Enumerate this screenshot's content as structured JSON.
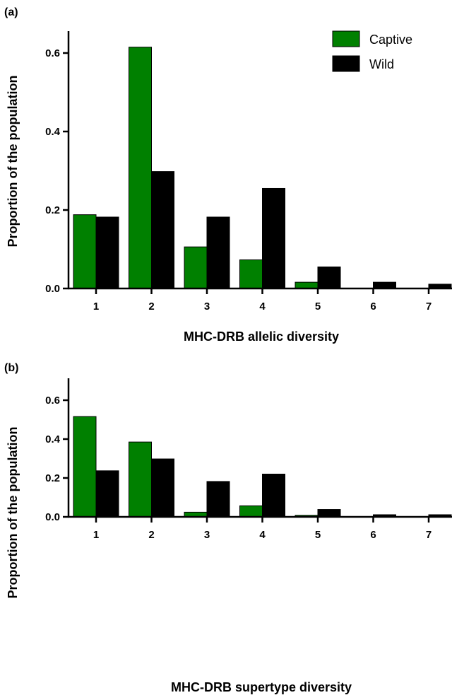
{
  "chart_data": [
    {
      "panel_label": "(a)",
      "type": "bar",
      "categories": [
        "1",
        "2",
        "3",
        "4",
        "5",
        "6",
        "7"
      ],
      "series": [
        {
          "name": "Captive",
          "color": "#008000",
          "values": [
            0.188,
            0.615,
            0.106,
            0.073,
            0.016,
            0.0,
            0.0
          ]
        },
        {
          "name": "Wild",
          "color": "#000000",
          "values": [
            0.182,
            0.298,
            0.182,
            0.255,
            0.055,
            0.016,
            0.011
          ]
        }
      ],
      "xlabel": "MHC-DRB allelic diversity",
      "ylabel": "Proportion of the population",
      "ylim": [
        0,
        0.6
      ],
      "yticks": [
        "0.0",
        "0.2",
        "0.4",
        "0.6"
      ],
      "legend_position": "top-right",
      "grid": false
    },
    {
      "panel_label": "(b)",
      "type": "bar",
      "categories": [
        "1",
        "2",
        "3",
        "4",
        "5",
        "6",
        "7"
      ],
      "series": [
        {
          "name": "Captive",
          "color": "#008000",
          "values": [
            0.516,
            0.385,
            0.024,
            0.057,
            0.008,
            0.0,
            0.0
          ]
        },
        {
          "name": "Wild",
          "color": "#000000",
          "values": [
            0.237,
            0.298,
            0.182,
            0.22,
            0.038,
            0.011,
            0.011
          ]
        }
      ],
      "xlabel": "MHC-DRB supertype diversity",
      "ylabel": "Proportion of the population",
      "ylim": [
        0,
        0.6
      ],
      "yticks": [
        "0.0",
        "0.2",
        "0.4",
        "0.6"
      ],
      "grid": false
    }
  ]
}
